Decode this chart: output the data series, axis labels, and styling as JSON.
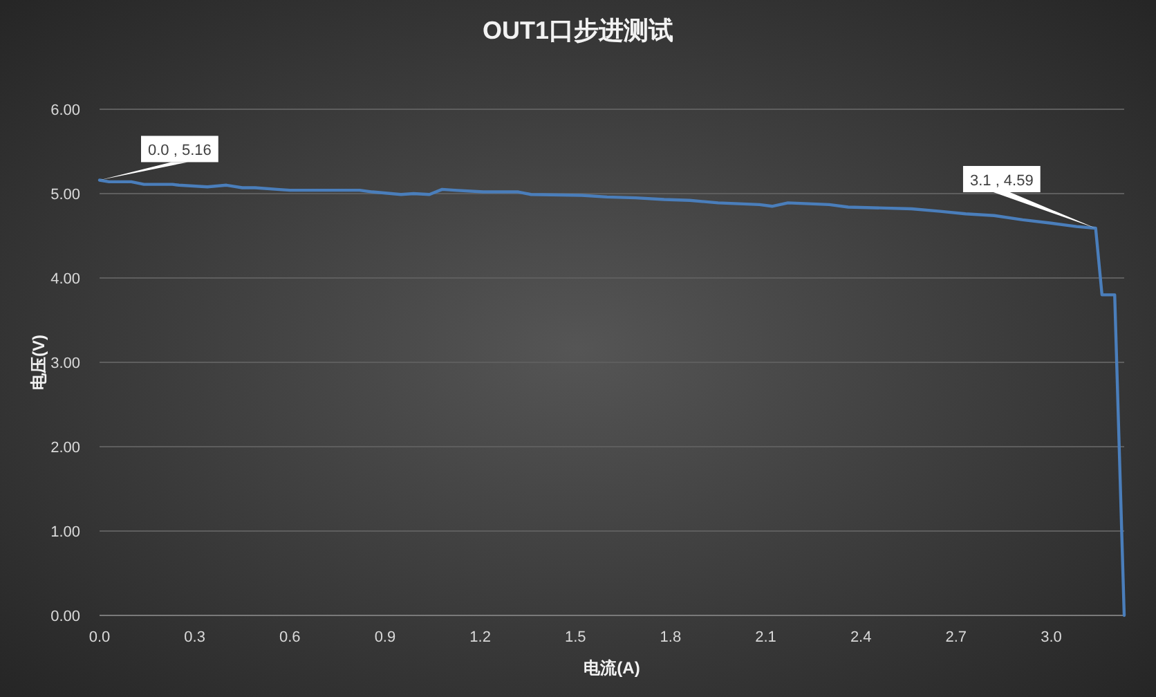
{
  "chart_data": {
    "type": "line",
    "title": "OUT1口步进测试",
    "xlabel": "电流(A)",
    "ylabel": "电压(V)",
    "x": [
      0,
      0.03,
      0.1,
      0.14,
      0.23,
      0.25,
      0.34,
      0.4,
      0.45,
      0.49,
      0.56,
      0.6,
      0.82,
      0.86,
      0.95,
      0.99,
      1.04,
      1.06,
      1.08,
      1.12,
      1.21,
      1.32,
      1.36,
      1.52,
      1.6,
      1.69,
      1.78,
      1.86,
      1.95,
      2.08,
      2.12,
      2.17,
      2.3,
      2.36,
      2.56,
      2.65,
      2.73,
      2.82,
      2.91,
      3.0,
      3.08,
      3.14,
      3.16,
      3.2,
      3.23
    ],
    "series": [
      {
        "color": "#4a7ebb",
        "values": [
          5.16,
          5.14,
          5.14,
          5.11,
          5.11,
          5.1,
          5.08,
          5.1,
          5.07,
          5.07,
          5.05,
          5.04,
          5.04,
          5.02,
          4.99,
          5.0,
          4.99,
          5.02,
          5.05,
          5.04,
          5.02,
          5.02,
          4.99,
          4.98,
          4.96,
          4.95,
          4.93,
          4.92,
          4.89,
          4.87,
          4.85,
          4.89,
          4.87,
          4.84,
          4.82,
          4.79,
          4.76,
          4.74,
          4.69,
          4.65,
          4.61,
          4.59,
          3.8,
          3.8,
          0
        ]
      }
    ],
    "xlim": [
      0,
      3.23
    ],
    "ylim": [
      0,
      6
    ],
    "xticks": [
      {
        "value": 0,
        "label": "0.0"
      },
      0.3,
      0.6,
      0.9,
      1.2,
      1.5,
      1.8,
      2.1,
      2.4,
      2.7,
      {
        "value": 3,
        "label": "3.0"
      }
    ],
    "yticks": [
      {
        "value": 0,
        "label": "0.00"
      },
      {
        "value": 1,
        "label": "1.00"
      },
      {
        "value": 2,
        "label": "2.00"
      },
      {
        "value": 3,
        "label": "3.00"
      },
      {
        "value": 4,
        "label": "4.00"
      },
      {
        "value": 5,
        "label": "5.00"
      },
      {
        "value": 6,
        "label": "6.00"
      }
    ],
    "grid": "y",
    "annotations": [
      {
        "text": "0.0 , 5.16",
        "x": 0,
        "y": 5.16
      },
      {
        "text": "3.1 , 4.59",
        "x": 3.14,
        "y": 4.59
      }
    ]
  }
}
